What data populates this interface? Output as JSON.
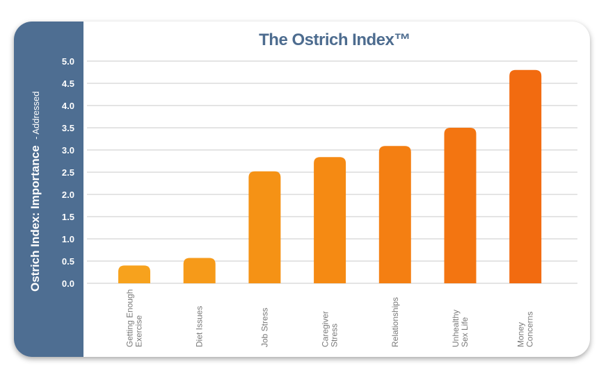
{
  "chart_data": {
    "type": "bar",
    "title": "The Ostrich Index™",
    "ylabel_main": "Ostrich Index: Importance",
    "ylabel_sub": "- Addressed",
    "xlabel": "",
    "ylim": [
      0,
      5
    ],
    "yticks": [
      "5.0",
      "4.5",
      "4.0",
      "3.5",
      "3.0",
      "2.5",
      "2.0",
      "1.5",
      "1.0",
      "0.5",
      "0.0"
    ],
    "grid": true,
    "categories": [
      [
        "Getting Enough",
        "Exercise"
      ],
      [
        "Diet Issues"
      ],
      [
        "Job Stress"
      ],
      [
        "Caregiver",
        "Stress"
      ],
      [
        "Relationships"
      ],
      [
        "Unhealthy",
        "Sex Life"
      ],
      [
        "Money",
        "Concerns"
      ]
    ],
    "values": [
      0.4,
      0.57,
      2.52,
      2.84,
      3.09,
      3.5,
      4.8
    ],
    "bar_colors": [
      "#f7a21d",
      "#f69a19",
      "#f59215",
      "#f58a13",
      "#f47f12",
      "#f37511",
      "#f26b10"
    ]
  },
  "colors": {
    "panel": "#4e6e92",
    "title": "#4d6c8f",
    "grid": "#e4e4e4"
  }
}
